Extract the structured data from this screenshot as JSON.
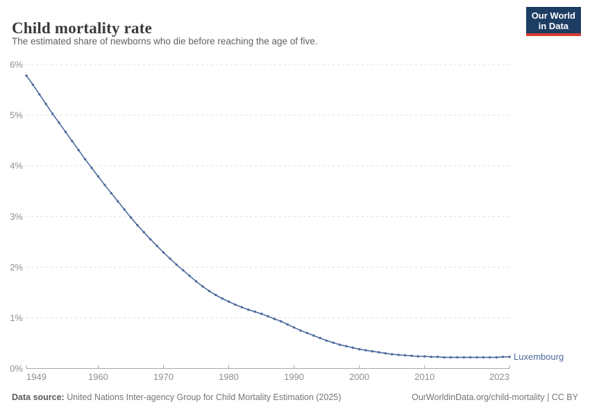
{
  "header": {
    "title": "Child mortality rate",
    "subtitle": "The estimated share of newborns who die before reaching the age of five.",
    "logo": {
      "line1": "Our World",
      "line2": "in Data",
      "bg_color": "#1d3d63",
      "accent_color": "#d73c32"
    }
  },
  "chart_data": {
    "type": "line",
    "title": "Child mortality rate",
    "subtitle": "The estimated share of newborns who die before reaching the age of five.",
    "xlabel": "",
    "ylabel": "",
    "xlim": [
      1949,
      2023
    ],
    "ylim": [
      0,
      6
    ],
    "grid": "horizontal-dashed",
    "legend_position": "end-of-line",
    "x_ticks": [
      1949,
      1960,
      1970,
      1980,
      1990,
      2000,
      2010,
      2023
    ],
    "y_ticks": [
      0,
      1,
      2,
      3,
      4,
      5,
      6
    ],
    "y_tick_labels": [
      "0%",
      "1%",
      "2%",
      "3%",
      "4%",
      "5%",
      "6%"
    ],
    "series": [
      {
        "name": "Luxembourg",
        "color": "#4C6A9C",
        "x": [
          1949,
          1950,
          1951,
          1952,
          1953,
          1954,
          1955,
          1956,
          1957,
          1958,
          1959,
          1960,
          1961,
          1962,
          1963,
          1964,
          1965,
          1966,
          1967,
          1968,
          1969,
          1970,
          1971,
          1972,
          1973,
          1974,
          1975,
          1976,
          1977,
          1978,
          1979,
          1980,
          1981,
          1982,
          1983,
          1984,
          1985,
          1986,
          1987,
          1988,
          1989,
          1990,
          1991,
          1992,
          1993,
          1994,
          1995,
          1996,
          1997,
          1998,
          1999,
          2000,
          2001,
          2002,
          2003,
          2004,
          2005,
          2006,
          2007,
          2008,
          2009,
          2010,
          2011,
          2012,
          2013,
          2014,
          2015,
          2016,
          2017,
          2018,
          2019,
          2020,
          2021,
          2022,
          2023
        ],
        "values": [
          5.78,
          5.6,
          5.41,
          5.22,
          5.03,
          4.85,
          4.67,
          4.49,
          4.31,
          4.13,
          3.96,
          3.79,
          3.62,
          3.46,
          3.3,
          3.14,
          2.98,
          2.83,
          2.69,
          2.55,
          2.42,
          2.29,
          2.17,
          2.05,
          1.94,
          1.83,
          1.72,
          1.62,
          1.53,
          1.45,
          1.38,
          1.32,
          1.26,
          1.21,
          1.16,
          1.12,
          1.08,
          1.03,
          0.98,
          0.93,
          0.87,
          0.81,
          0.75,
          0.7,
          0.65,
          0.6,
          0.55,
          0.51,
          0.47,
          0.44,
          0.41,
          0.38,
          0.36,
          0.34,
          0.32,
          0.3,
          0.28,
          0.27,
          0.26,
          0.25,
          0.24,
          0.24,
          0.23,
          0.23,
          0.22,
          0.22,
          0.22,
          0.22,
          0.22,
          0.22,
          0.22,
          0.22,
          0.22,
          0.23,
          0.23
        ]
      }
    ]
  },
  "footer": {
    "source_label": "Data source:",
    "source_text": " United Nations Inter-agency Group for Child Mortality Estimation (2025)",
    "attribution": "OurWorldinData.org/child-mortality | CC BY"
  }
}
